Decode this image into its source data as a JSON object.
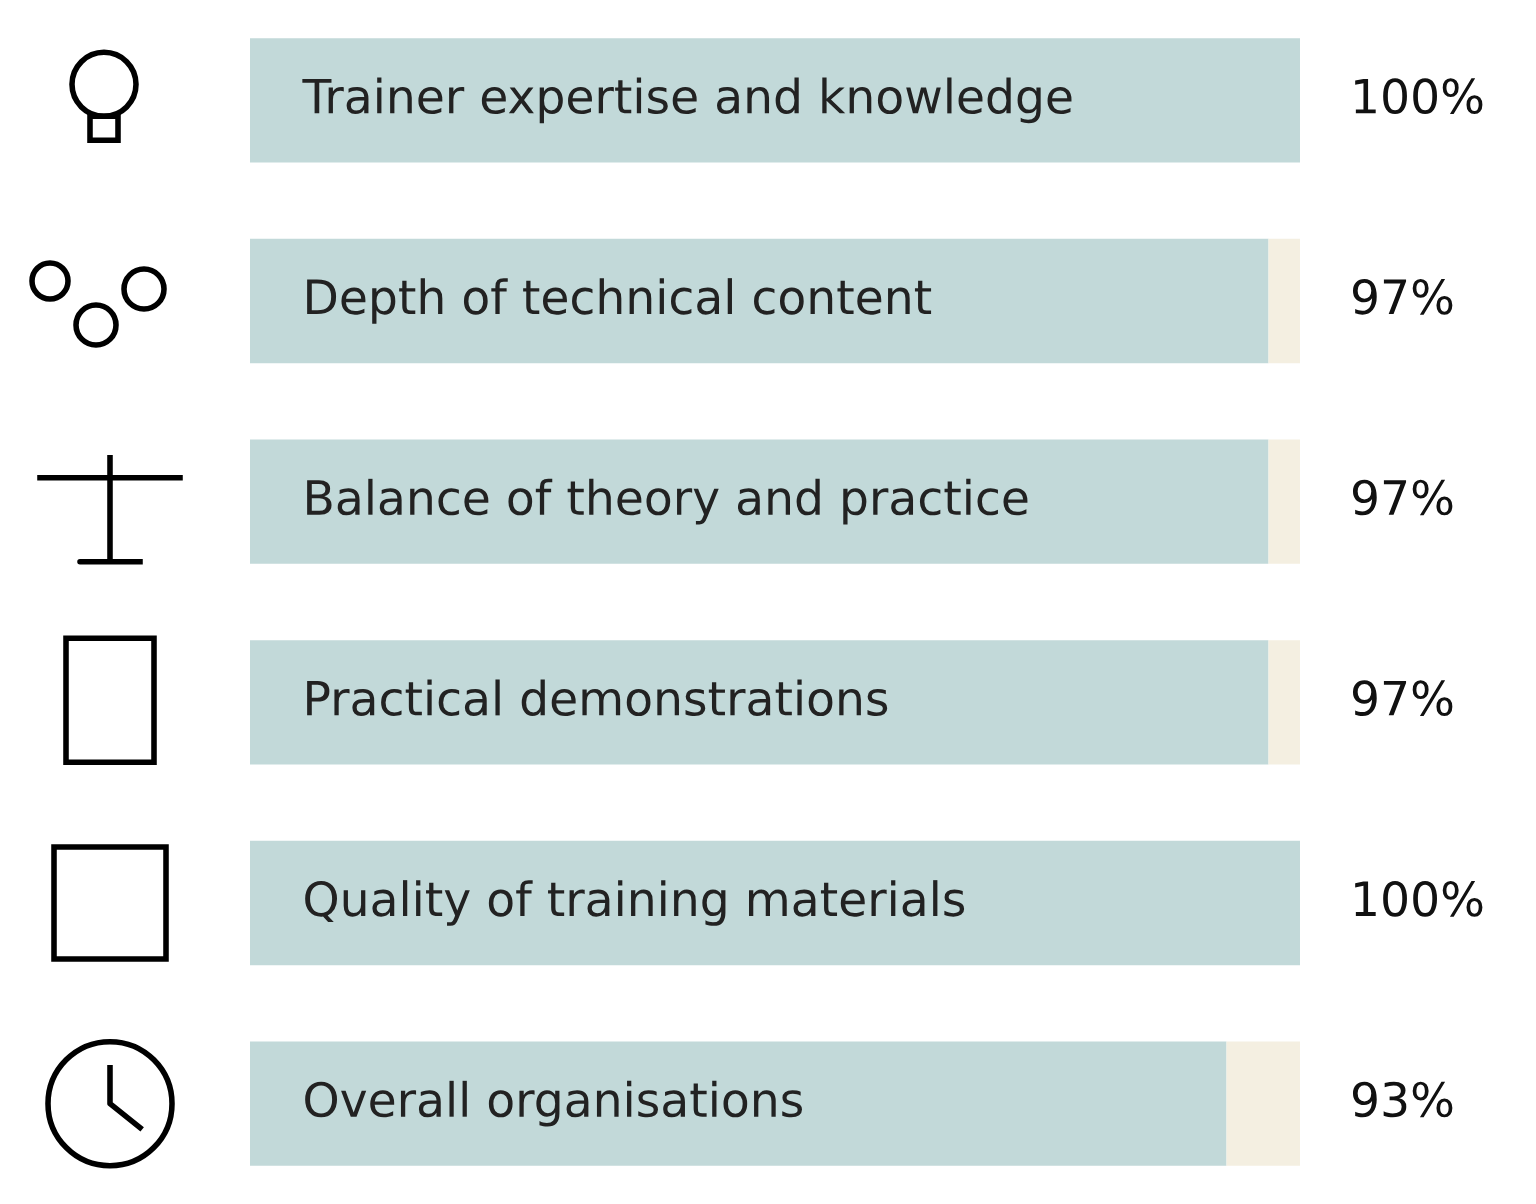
{
  "chart_data": {
    "type": "bar",
    "orientation": "horizontal",
    "stacked": true,
    "categories": [
      "Trainer expertise and knowledge",
      "Depth of technical content",
      "Balance of theory and practice",
      "Practical demonstrations",
      "Quality of training materials",
      "Overall organisations"
    ],
    "series": [
      {
        "color": "#c2d9d9",
        "values": [
          100,
          97,
          97,
          97,
          100,
          93
        ],
        "value_labels": [
          "100%",
          "97%",
          "97%",
          "97%",
          "100%",
          "93%"
        ]
      },
      {
        "color": "#f4efe1",
        "values": [
          0,
          3,
          3,
          3,
          0,
          7
        ]
      }
    ],
    "xlim": [
      0,
      100
    ],
    "tick_labels": false,
    "legend": false
  }
}
